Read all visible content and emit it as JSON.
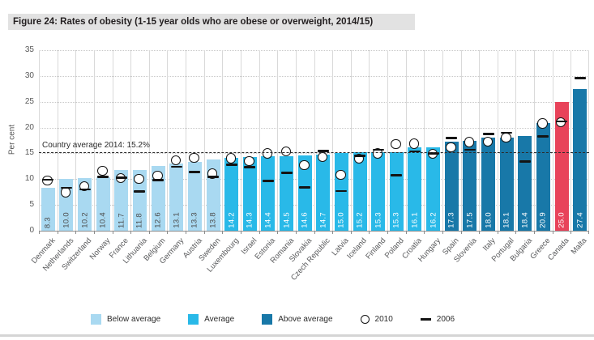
{
  "figure": {
    "title": "Figure 24: Rates of obesity (1-15 year olds who are obese or overweight, 2014/15)"
  },
  "chart_data": {
    "type": "bar",
    "title": "Figure 24: Rates of obesity (1-15 year olds who are obese or overweight, 2014/15)",
    "xlabel": "",
    "ylabel": "Per cent",
    "ylim": [
      0,
      35
    ],
    "yticks": [
      0,
      5,
      10,
      15,
      20,
      25,
      30,
      35
    ],
    "grid": "horizontal-dotted",
    "legend_position": "bottom",
    "average_line": {
      "value": 15.2,
      "label": "Country average 2014: 15.2%"
    },
    "group_colors": {
      "below": "#a9d9f1",
      "average": "#29b9e8",
      "above": "#1878a8",
      "highlight": "#e8435a"
    },
    "marker_series": [
      {
        "name": "2010",
        "marker": "circle"
      },
      {
        "name": "2006",
        "marker": "dash"
      }
    ],
    "countries": [
      {
        "name": "Denmark",
        "value": 8.3,
        "group": "below",
        "y2010": 9.9,
        "y2006": 9.9
      },
      {
        "name": "Netherlands",
        "value": 10.0,
        "group": "below",
        "y2010": 7.6,
        "y2006": 8.3
      },
      {
        "name": "Switzerland",
        "value": 10.2,
        "group": "below",
        "y2010": 8.8,
        "y2006": 8.0
      },
      {
        "name": "Norway",
        "value": 10.4,
        "group": "below",
        "y2010": 11.7,
        "y2006": 10.4
      },
      {
        "name": "France",
        "value": 11.7,
        "group": "below",
        "y2010": 10.3,
        "y2006": 10.3
      },
      {
        "name": "Lithuania",
        "value": 11.8,
        "group": "below",
        "y2010": 10.2,
        "y2006": 7.6
      },
      {
        "name": "Belgium",
        "value": 12.6,
        "group": "below",
        "y2010": 10.8,
        "y2006": 9.8
      },
      {
        "name": "Germany",
        "value": 13.1,
        "group": "below",
        "y2010": 13.8,
        "y2006": 12.4
      },
      {
        "name": "Austria",
        "value": 13.3,
        "group": "below",
        "y2010": 14.3,
        "y2006": 11.4
      },
      {
        "name": "Sweden",
        "value": 13.8,
        "group": "below",
        "y2010": 11.2,
        "y2006": 10.4
      },
      {
        "name": "Luxembourg",
        "value": 14.2,
        "group": "average",
        "y2010": 14.2,
        "y2006": 12.8
      },
      {
        "name": "Israel",
        "value": 14.3,
        "group": "average",
        "y2010": 13.6,
        "y2006": 12.3
      },
      {
        "name": "Estonia",
        "value": 14.4,
        "group": "average",
        "y2010": 15.1,
        "y2006": 9.7
      },
      {
        "name": "Romania",
        "value": 14.5,
        "group": "average",
        "y2010": 15.5,
        "y2006": 11.2
      },
      {
        "name": "Slovakia",
        "value": 14.6,
        "group": "average",
        "y2010": 12.8,
        "y2006": 8.4
      },
      {
        "name": "Czech Republic",
        "value": 14.7,
        "group": "average",
        "y2010": 14.4,
        "y2006": 15.5
      },
      {
        "name": "Latvia",
        "value": 15.0,
        "group": "average",
        "y2010": 11.0,
        "y2006": 7.7
      },
      {
        "name": "Iceland",
        "value": 15.2,
        "group": "average",
        "y2010": 14.1,
        "y2006": 14.5
      },
      {
        "name": "Finland",
        "value": 15.3,
        "group": "average",
        "y2010": 15.1,
        "y2006": 15.7
      },
      {
        "name": "Poland",
        "value": 15.3,
        "group": "average",
        "y2010": 16.9,
        "y2006": 10.8
      },
      {
        "name": "Croatia",
        "value": 16.1,
        "group": "average",
        "y2010": 17.0,
        "y2006": 15.4
      },
      {
        "name": "Hungary",
        "value": 16.2,
        "group": "average",
        "y2010": 15.0,
        "y2006": 15.0
      },
      {
        "name": "Spain",
        "value": 17.3,
        "group": "above",
        "y2010": 16.3,
        "y2006": 18.0
      },
      {
        "name": "Slovenia",
        "value": 17.5,
        "group": "above",
        "y2010": 17.3,
        "y2006": 15.7
      },
      {
        "name": "Italy",
        "value": 18.0,
        "group": "above",
        "y2010": 17.4,
        "y2006": 18.8
      },
      {
        "name": "Portugal",
        "value": 18.1,
        "group": "above",
        "y2010": 18.2,
        "y2006": 19.0
      },
      {
        "name": "Bulgaria",
        "value": 18.4,
        "group": "above",
        "y2010": null,
        "y2006": 13.4
      },
      {
        "name": "Greece",
        "value": 20.9,
        "group": "above",
        "y2010": 20.9,
        "y2006": 18.3
      },
      {
        "name": "Canada",
        "value": 25.0,
        "group": "highlight",
        "y2010": 21.2,
        "y2006": 21.2
      },
      {
        "name": "Malta",
        "value": 27.4,
        "group": "above",
        "y2010": null,
        "y2006": 29.6
      }
    ]
  },
  "legend": {
    "items": [
      {
        "label": "Below average",
        "swatch": "below"
      },
      {
        "label": "Average",
        "swatch": "average"
      },
      {
        "label": "Above average",
        "swatch": "above"
      },
      {
        "label": "2010",
        "marker": "circle"
      },
      {
        "label": "2006",
        "marker": "dash"
      }
    ]
  }
}
